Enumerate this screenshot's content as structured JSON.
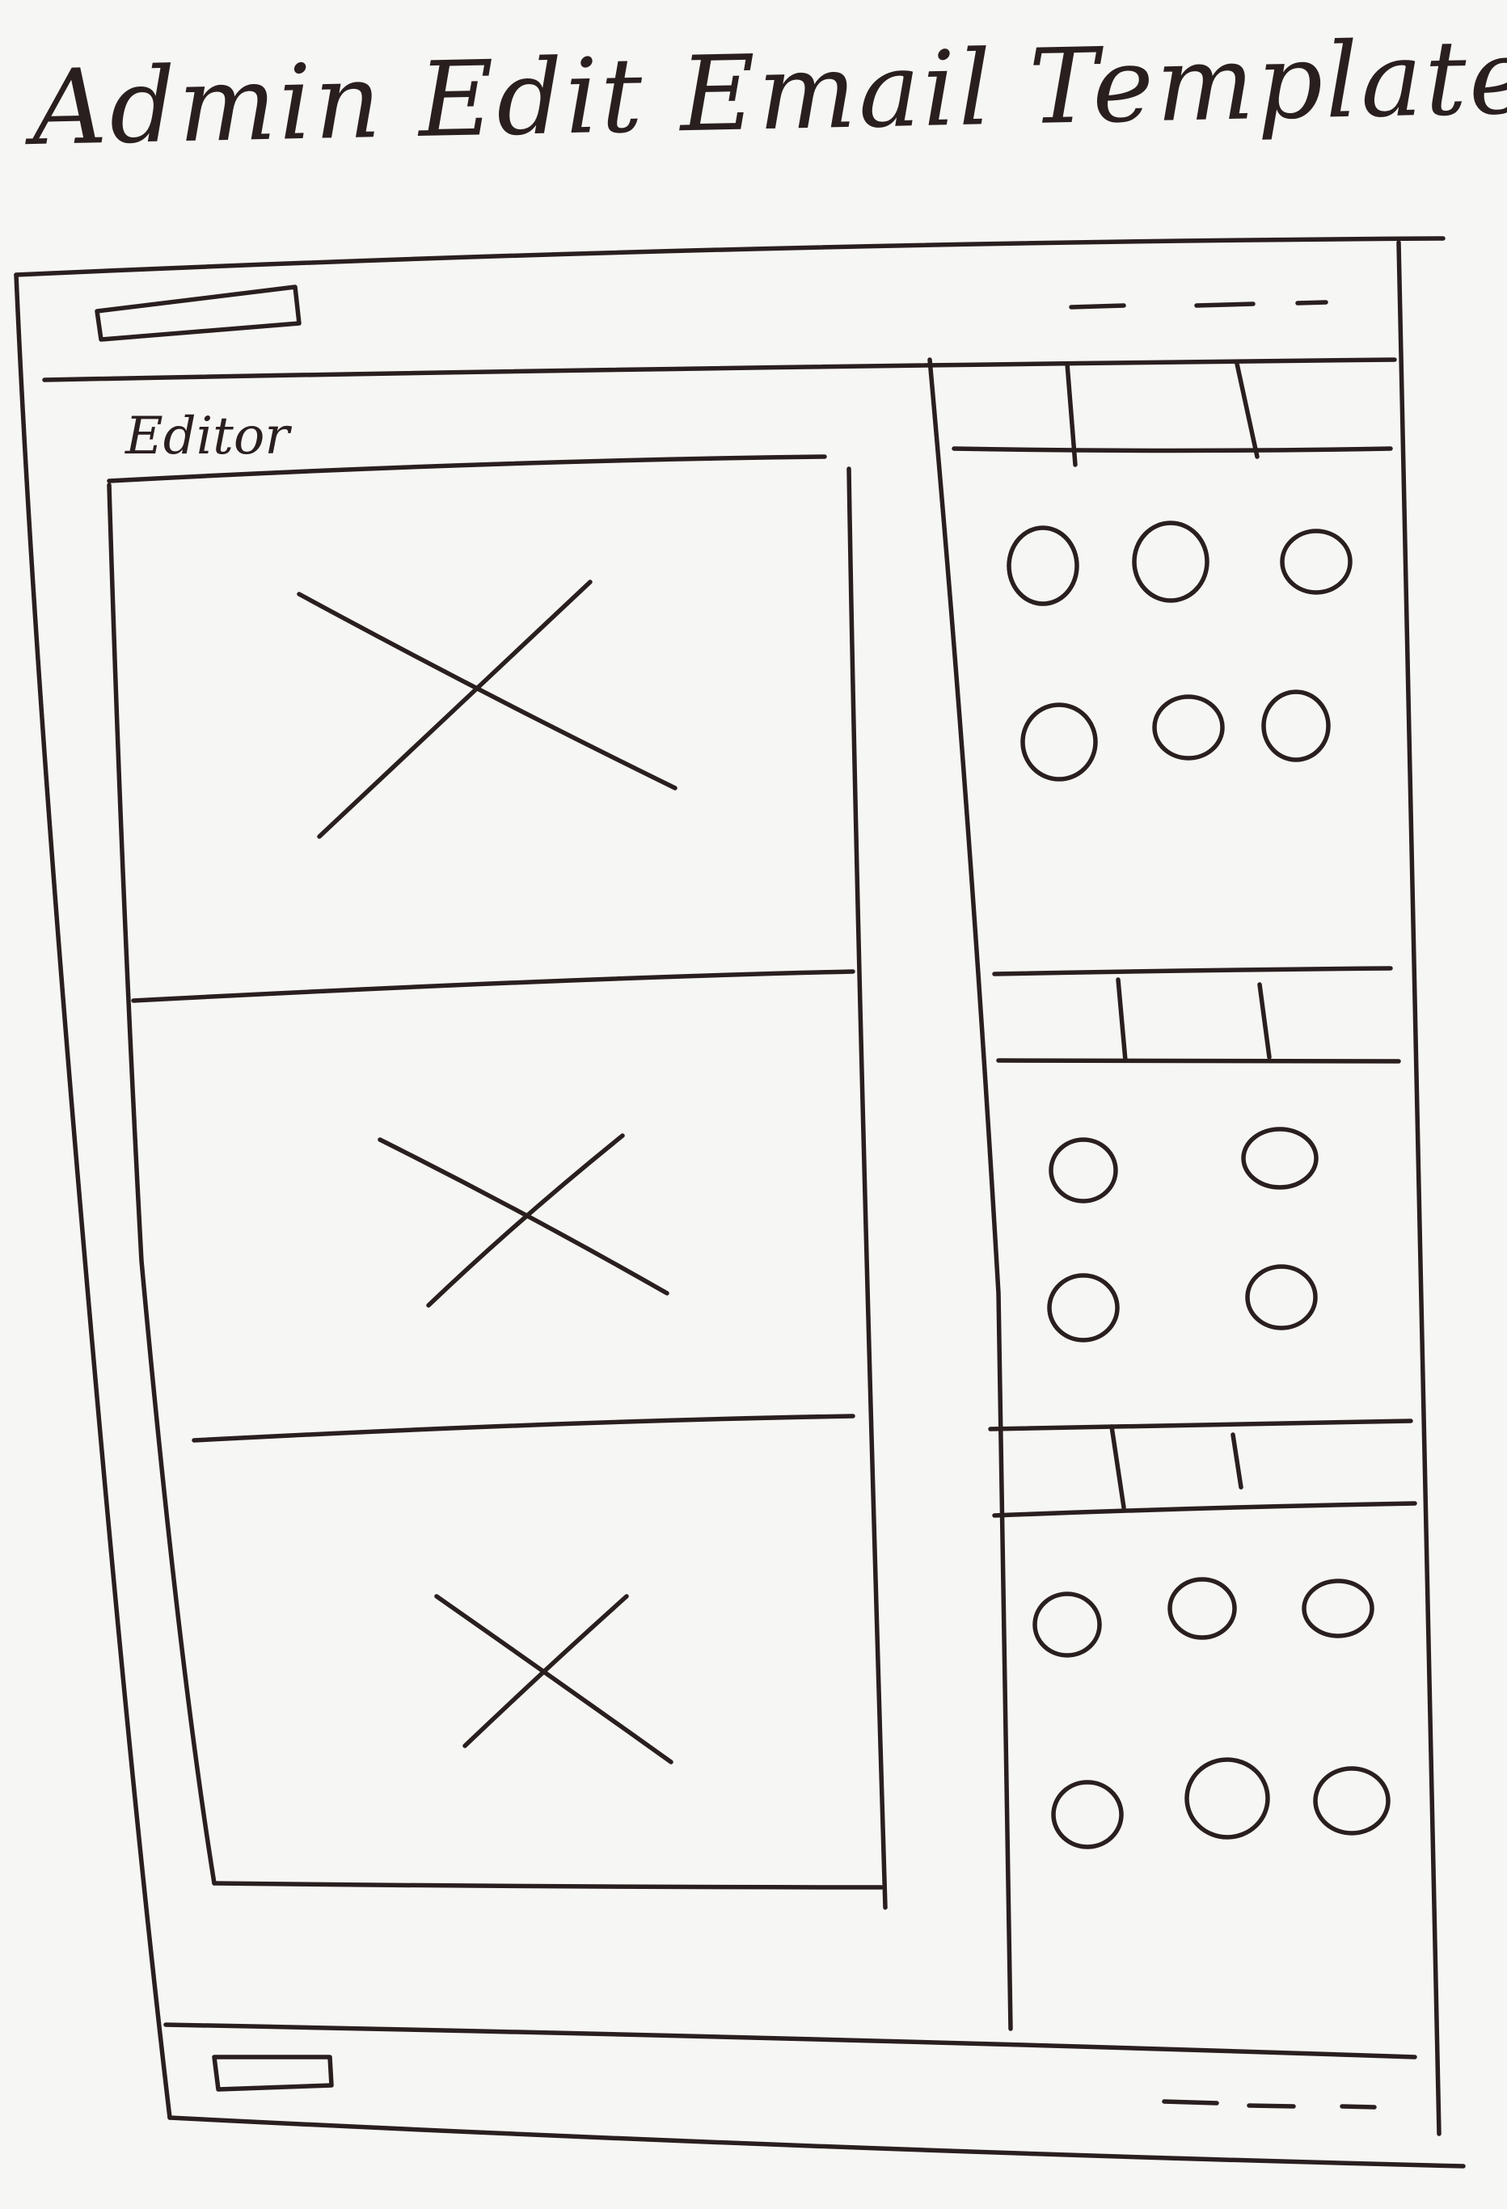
{
  "sketch": {
    "title": "Admin Edit Email Template Page",
    "editor_label": "Editor"
  },
  "layout_notes": {
    "editor_blocks": 3,
    "sidebar_sections": [
      {
        "tabs": 3,
        "swatch_rows": 2,
        "swatches_per_row": 3
      },
      {
        "tabs": 3,
        "swatch_rows": 2,
        "swatches_per_row": 2
      },
      {
        "tabs": 3,
        "swatch_rows": 2,
        "swatches_per_row": 3
      }
    ],
    "header_nav_links": 3,
    "footer_nav_links": 3
  },
  "colors": {
    "ink": "#2a1f1f",
    "paper": "#f6f6f4"
  }
}
